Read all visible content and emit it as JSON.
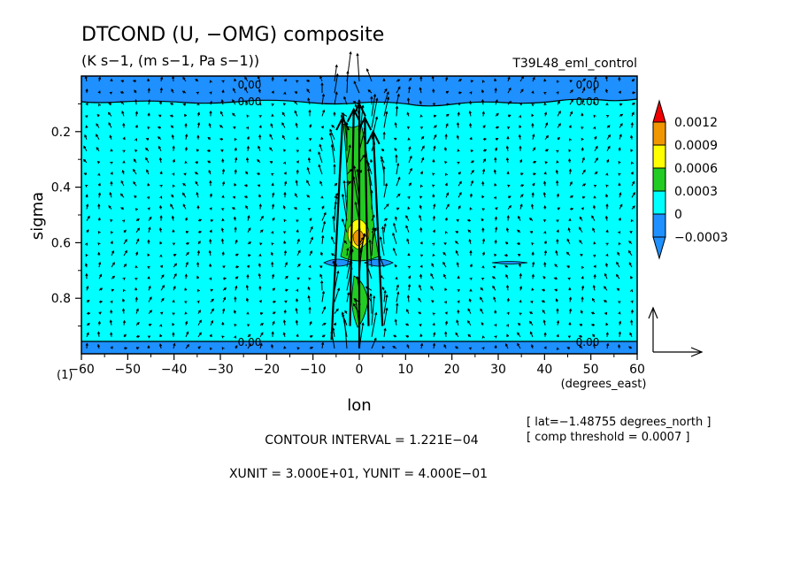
{
  "chart_data": {
    "type": "heatmap",
    "title": "DTCOND (U, −OMG) composite",
    "subtitle": "(K s−1, (m s−1, Pa s−1))",
    "run_label": "T39L48_eml_control",
    "xlabel": "lon",
    "xunits": "(degrees_east)",
    "ylabel": "sigma",
    "panel_number": "(1)",
    "xlim": [
      -60,
      60
    ],
    "ylim": [
      1.0,
      0.0
    ],
    "x_ticks": [
      -60,
      -50,
      -40,
      -30,
      -20,
      -10,
      0,
      10,
      20,
      30,
      40,
      50,
      60
    ],
    "x_tick_labels": [
      "−60",
      "−50",
      "−40",
      "−30",
      "−20",
      "−10",
      "0",
      "10",
      "20",
      "30",
      "40",
      "50",
      "60"
    ],
    "y_ticks": [
      0.2,
      0.4,
      0.6,
      0.8
    ],
    "y_tick_labels": [
      "0.2",
      "0.4",
      "0.6",
      "0.8"
    ],
    "colorbar": {
      "levels": [
        "0.0012",
        "0.0009",
        "0.0006",
        "0.0003",
        "0",
        "−0.0003"
      ],
      "colors": [
        "#f00000",
        "#f09600",
        "#ffff00",
        "#22cc22",
        "#00ffff",
        "#1e90ff"
      ]
    },
    "background_color": "#00ffff",
    "negative_color": "#1e90ff",
    "contour_labels": [
      "0.00",
      "0.00",
      "0.00",
      "0.00",
      "0.00",
      "0.00"
    ],
    "info_lines": [
      "[ lat=−1.48755 degrees_north ]",
      "[ comp threshold = 0.0007 ]"
    ],
    "contour_interval": "CONTOUR INTERVAL = 1.221E−04",
    "unit_vectors": "XUNIT = 3.000E+01, YUNIT = 4.000E−01"
  }
}
